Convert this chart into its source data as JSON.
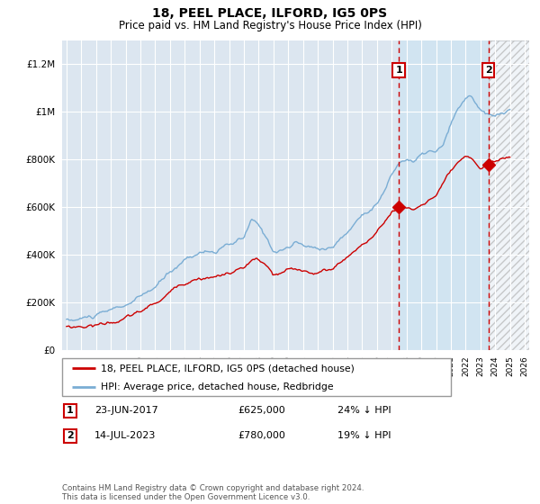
{
  "title": "18, PEEL PLACE, ILFORD, IG5 0PS",
  "subtitle": "Price paid vs. HM Land Registry's House Price Index (HPI)",
  "hpi_color": "#7aadd4",
  "price_color": "#cc0000",
  "vline_color": "#cc0000",
  "marker1_x": 2017.48,
  "marker2_x": 2023.54,
  "legend_line1": "18, PEEL PLACE, ILFORD, IG5 0PS (detached house)",
  "legend_line2": "HPI: Average price, detached house, Redbridge",
  "table_row1": [
    "1",
    "23-JUN-2017",
    "£625,000",
    "24% ↓ HPI"
  ],
  "table_row2": [
    "2",
    "14-JUL-2023",
    "£780,000",
    "19% ↓ HPI"
  ],
  "footer": "Contains HM Land Registry data © Crown copyright and database right 2024.\nThis data is licensed under the Open Government Licence v3.0.",
  "ylim": [
    0,
    1300000
  ],
  "yticks": [
    0,
    200000,
    400000,
    600000,
    800000,
    1000000,
    1200000
  ],
  "xlim_start": 1994.7,
  "xlim_end": 2026.3
}
